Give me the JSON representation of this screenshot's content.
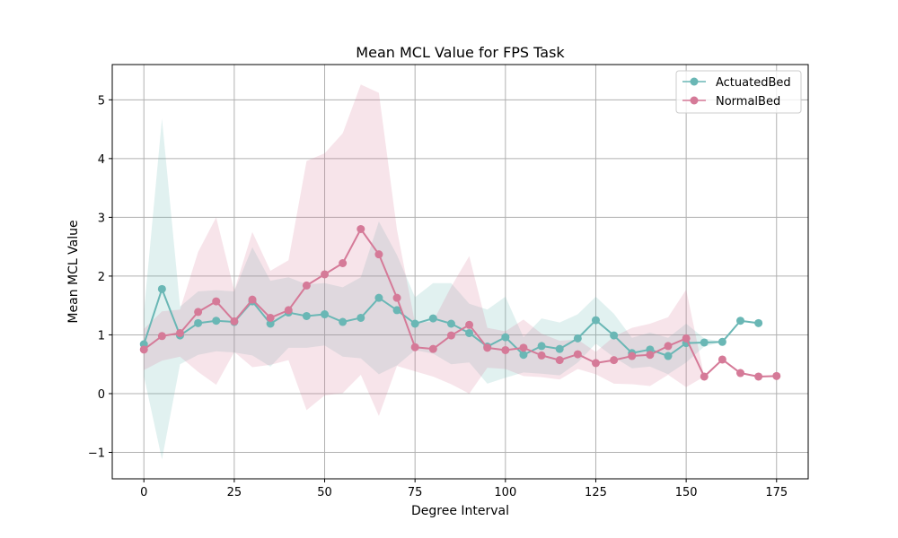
{
  "chart_data": {
    "type": "line",
    "title": "Mean MCL Value for FPS Task",
    "xlabel": "Degree Interval",
    "ylabel": "Mean MCL Value",
    "xlim": [
      -8.75,
      183.75
    ],
    "ylim": [
      -1.45,
      5.6
    ],
    "xticks": [
      0,
      25,
      50,
      75,
      100,
      125,
      150,
      175
    ],
    "yticks": [
      -1,
      0,
      1,
      2,
      3,
      4,
      5
    ],
    "grid": true,
    "legend_position": "top-right",
    "series": [
      {
        "name": "ActuatedBed",
        "color": "#6ab7b5",
        "x": [
          0,
          5,
          10,
          15,
          20,
          25,
          30,
          35,
          40,
          45,
          50,
          55,
          60,
          65,
          70,
          75,
          80,
          85,
          90,
          95,
          100,
          105,
          110,
          115,
          120,
          125,
          130,
          135,
          140,
          145,
          150,
          155,
          160,
          165,
          170
        ],
        "y": [
          0.84,
          1.78,
          0.99,
          1.2,
          1.24,
          1.22,
          1.57,
          1.19,
          1.38,
          1.32,
          1.35,
          1.22,
          1.29,
          1.63,
          1.42,
          1.19,
          1.28,
          1.19,
          1.03,
          0.8,
          0.96,
          0.66,
          0.81,
          0.76,
          0.94,
          1.25,
          0.99,
          0.69,
          0.75,
          0.64,
          0.86,
          0.87,
          0.88,
          1.24,
          1.2
        ],
        "lower": [
          0.3,
          -1.12,
          0.5,
          0.66,
          0.72,
          0.7,
          0.65,
          0.46,
          0.78,
          0.78,
          0.82,
          0.63,
          0.6,
          0.33,
          0.48,
          0.74,
          0.68,
          0.5,
          0.53,
          0.17,
          0.27,
          0.36,
          0.34,
          0.31,
          0.53,
          0.85,
          0.62,
          0.43,
          0.46,
          0.33,
          0.53,
          0.8,
          0.88,
          1.24,
          1.2
        ],
        "upper": [
          1.38,
          4.68,
          1.48,
          1.74,
          1.76,
          1.74,
          2.49,
          1.92,
          1.98,
          1.86,
          1.88,
          1.81,
          1.98,
          2.93,
          2.36,
          1.64,
          1.88,
          1.88,
          1.53,
          1.43,
          1.65,
          0.96,
          1.28,
          1.21,
          1.35,
          1.65,
          1.36,
          0.95,
          1.04,
          0.95,
          1.19,
          0.94,
          0.88,
          1.24,
          1.2
        ]
      },
      {
        "name": "NormalBed",
        "color": "#d57a98",
        "x": [
          0,
          5,
          10,
          15,
          20,
          25,
          30,
          35,
          40,
          45,
          50,
          55,
          60,
          65,
          70,
          75,
          80,
          85,
          90,
          95,
          100,
          105,
          110,
          115,
          120,
          125,
          130,
          135,
          140,
          145,
          150,
          155,
          160,
          165,
          170,
          175
        ],
        "y": [
          0.75,
          0.98,
          1.03,
          1.39,
          1.57,
          1.23,
          1.6,
          1.29,
          1.42,
          1.84,
          2.03,
          2.22,
          2.8,
          2.37,
          1.63,
          0.79,
          0.76,
          0.99,
          1.17,
          0.78,
          0.74,
          0.78,
          0.65,
          0.57,
          0.67,
          0.52,
          0.57,
          0.64,
          0.66,
          0.81,
          0.94,
          0.29,
          0.58,
          0.35,
          0.29,
          0.3
        ],
        "lower": [
          0.4,
          0.56,
          0.63,
          0.37,
          0.15,
          0.71,
          0.45,
          0.49,
          0.57,
          -0.28,
          -0.03,
          0.01,
          0.32,
          -0.38,
          0.47,
          0.38,
          0.29,
          0.16,
          0.0,
          0.44,
          0.42,
          0.3,
          0.28,
          0.24,
          0.42,
          0.33,
          0.17,
          0.16,
          0.13,
          0.32,
          0.11,
          0.29,
          0.58,
          0.35,
          0.29,
          0.3
        ],
        "upper": [
          1.1,
          1.4,
          1.43,
          2.41,
          3.0,
          1.75,
          2.75,
          2.09,
          2.27,
          3.96,
          4.09,
          4.43,
          5.26,
          5.12,
          2.79,
          1.2,
          1.23,
          1.82,
          2.34,
          1.12,
          1.06,
          1.26,
          1.02,
          0.9,
          0.92,
          0.71,
          0.97,
          1.12,
          1.19,
          1.3,
          1.77,
          0.29,
          0.58,
          0.35,
          0.29,
          0.3
        ]
      }
    ]
  }
}
